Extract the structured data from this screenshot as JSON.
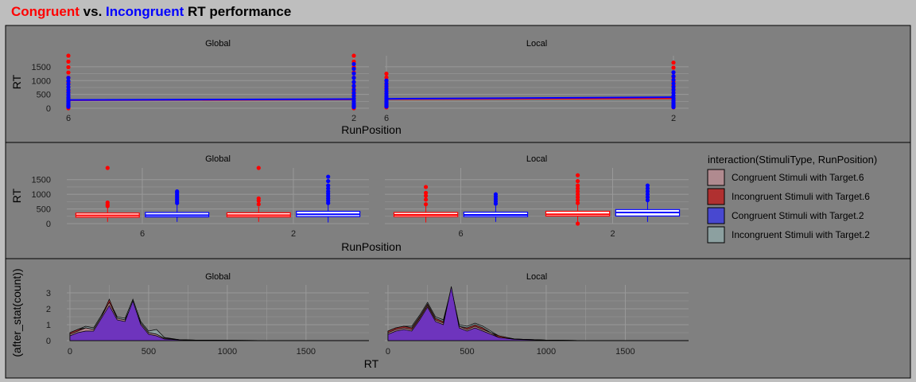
{
  "title": {
    "congruent": "Congruent",
    "vs": " vs. ",
    "incongruent": "Incongruent",
    "rest": " RT performance"
  },
  "colors": {
    "background": "#bebebe",
    "panel": "#808080",
    "congruent": "#ff0000",
    "incongruent": "#0000ff",
    "grid": "#999999"
  },
  "facets": [
    "Global",
    "Local"
  ],
  "legend": {
    "title": "interaction(StimuliType, RunPosition)",
    "items": [
      {
        "label": "Congruent Stimuli with Target.6",
        "color": "#b08a8f"
      },
      {
        "label": "Incongruent Stimuli with Target.6",
        "color": "#b03030"
      },
      {
        "label": "Congruent Stimuli with Target.2",
        "color": "#4848d0"
      },
      {
        "label": "Incongruent Stimuli with Target.2",
        "color": "#8ca0a0"
      }
    ]
  },
  "chart_data": [
    {
      "type": "line",
      "xlabel": "RunPosition",
      "ylabel": "RT",
      "categories": [
        "6",
        "2"
      ],
      "ylim": [
        0,
        1900
      ],
      "yticks": [
        0,
        500,
        1000,
        1500
      ],
      "facets": [
        {
          "name": "Global",
          "series": [
            {
              "color": "#ff0000",
              "line": [
                290,
                320
              ],
              "max": [
                1900,
                1900
              ],
              "min": [
                0,
                0
              ]
            },
            {
              "color": "#0000ff",
              "line": [
                300,
                330
              ],
              "max": [
                1100,
                1600
              ],
              "min": [
                50,
                40
              ]
            }
          ]
        },
        {
          "name": "Local",
          "series": [
            {
              "color": "#ff0000",
              "line": [
                330,
                360
              ],
              "max": [
                1250,
                1650
              ],
              "min": [
                30,
                30
              ]
            },
            {
              "color": "#0000ff",
              "line": [
                340,
                400
              ],
              "max": [
                1000,
                1300
              ],
              "min": [
                60,
                40
              ]
            }
          ]
        }
      ]
    },
    {
      "type": "box",
      "xlabel": "RunPosition",
      "ylabel": "RT",
      "categories": [
        "6",
        "2"
      ],
      "ylim": [
        0,
        1900
      ],
      "yticks": [
        0,
        500,
        1000,
        1500
      ],
      "facets": [
        {
          "name": "Global",
          "boxes": [
            {
              "position": "6",
              "group": "Congruent",
              "color": "#ff0000",
              "whisker_low": 60,
              "q1": 220,
              "median": 280,
              "q3": 360,
              "whisker_high": 540,
              "outliers": [
                600,
                650,
                720,
                1900
              ]
            },
            {
              "position": "6",
              "group": "Incongruent",
              "color": "#0000ff",
              "whisker_low": 60,
              "q1": 230,
              "median": 290,
              "q3": 380,
              "whisker_high": 650,
              "outliers": [
                700,
                760,
                820,
                880,
                940,
                1000,
                1060,
                1100
              ]
            },
            {
              "position": "2",
              "group": "Congruent",
              "color": "#ff0000",
              "whisker_low": 60,
              "q1": 230,
              "median": 290,
              "q3": 370,
              "whisker_high": 580,
              "outliers": [
                660,
                780,
                860,
                1900
              ]
            },
            {
              "position": "2",
              "group": "Incongruent",
              "color": "#0000ff",
              "whisker_low": 40,
              "q1": 240,
              "median": 320,
              "q3": 420,
              "whisker_high": 640,
              "outliers": [
                700,
                780,
                860,
                940,
                1020,
                1100,
                1200,
                1300,
                1450,
                1600
              ]
            }
          ]
        },
        {
          "name": "Local",
          "boxes": [
            {
              "position": "6",
              "group": "Congruent",
              "color": "#ff0000",
              "whisker_low": 40,
              "q1": 240,
              "median": 300,
              "q3": 380,
              "whisker_high": 600,
              "outliers": [
                660,
                820,
                950,
                1050,
                1250
              ]
            },
            {
              "position": "6",
              "group": "Incongruent",
              "color": "#0000ff",
              "whisker_low": 60,
              "q1": 240,
              "median": 300,
              "q3": 390,
              "whisker_high": 620,
              "outliers": [
                680,
                760,
                840,
                920,
                1000
              ]
            },
            {
              "position": "2",
              "group": "Congruent",
              "color": "#ff0000",
              "whisker_low": 60,
              "q1": 260,
              "median": 320,
              "q3": 420,
              "whisker_high": 650,
              "outliers": [
                0,
                700,
                800,
                900,
                1000,
                1100,
                1200,
                1300,
                1450,
                1650
              ]
            },
            {
              "position": "2",
              "group": "Incongruent",
              "color": "#0000ff",
              "whisker_low": 60,
              "q1": 260,
              "median": 380,
              "q3": 480,
              "whisker_high": 740,
              "outliers": [
                800,
                900,
                1000,
                1100,
                1200,
                1300
              ]
            }
          ]
        }
      ]
    },
    {
      "type": "area",
      "xlabel": "RT",
      "ylabel": "(after_stat(count))",
      "xlim": [
        -20,
        1900
      ],
      "xticks": [
        0,
        500,
        1000,
        1500
      ],
      "ylim": [
        0,
        3.5
      ],
      "yticks": [
        0,
        1,
        2,
        3
      ],
      "facets": [
        {
          "name": "Global",
          "series": [
            {
              "color": "#8ca0a0",
              "x": [
                0,
                50,
                100,
                150,
                200,
                250,
                300,
                350,
                400,
                450,
                500,
                550,
                600,
                700,
                800,
                1000,
                1200,
                1500,
                1900
              ],
              "values": [
                0.5,
                0.7,
                0.9,
                0.8,
                1.6,
                2.5,
                1.5,
                1.4,
                2.6,
                1.2,
                0.6,
                0.7,
                0.2,
                0.05,
                0.03,
                0.02,
                0.01,
                0.01,
                0
              ]
            },
            {
              "color": "#b03030",
              "x": [
                0,
                50,
                100,
                150,
                200,
                250,
                300,
                350,
                400,
                450,
                500,
                550,
                600,
                700,
                800,
                1000,
                1200,
                1500,
                1900
              ],
              "values": [
                0.5,
                0.7,
                0.8,
                0.7,
                1.5,
                2.6,
                1.4,
                1.3,
                2.4,
                1.1,
                0.5,
                0.4,
                0.15,
                0.05,
                0.03,
                0.02,
                0.01,
                0.01,
                0
              ]
            },
            {
              "color": "#b08a8f",
              "x": [
                0,
                50,
                100,
                150,
                200,
                250,
                300,
                350,
                400,
                450,
                500,
                550,
                600,
                700,
                800,
                1000,
                1200,
                1500,
                1900
              ],
              "values": [
                0.4,
                0.6,
                0.8,
                0.7,
                1.5,
                2.4,
                1.4,
                1.3,
                2.3,
                1.1,
                0.5,
                0.4,
                0.15,
                0.05,
                0.03,
                0.02,
                0.01,
                0.01,
                0
              ]
            },
            {
              "color": "#6a2fc0",
              "x": [
                0,
                50,
                100,
                150,
                200,
                250,
                300,
                350,
                400,
                450,
                500,
                550,
                600,
                700,
                800,
                1000,
                1200,
                1500,
                1900
              ],
              "values": [
                0.3,
                0.5,
                0.6,
                0.6,
                1.4,
                2.2,
                1.3,
                1.2,
                2.5,
                1.0,
                0.4,
                0.3,
                0.1,
                0.04,
                0.02,
                0.01,
                0.01,
                0.01,
                0
              ]
            }
          ]
        },
        {
          "name": "Local",
          "series": [
            {
              "color": "#8ca0a0",
              "x": [
                0,
                50,
                100,
                150,
                200,
                250,
                300,
                350,
                400,
                450,
                500,
                550,
                600,
                650,
                700,
                800,
                1000,
                1200,
                1500,
                1900
              ],
              "values": [
                0.6,
                0.8,
                0.9,
                0.9,
                1.6,
                2.4,
                1.5,
                1.3,
                3.3,
                1.0,
                0.9,
                1.1,
                0.9,
                0.6,
                0.3,
                0.1,
                0.03,
                0.01,
                0.01,
                0
              ]
            },
            {
              "color": "#b03030",
              "x": [
                0,
                50,
                100,
                150,
                200,
                250,
                300,
                350,
                400,
                450,
                500,
                550,
                600,
                650,
                700,
                800,
                1000,
                1200,
                1500,
                1900
              ],
              "values": [
                0.6,
                0.8,
                0.9,
                0.8,
                1.5,
                2.3,
                1.4,
                1.2,
                3.2,
                0.9,
                0.8,
                1.0,
                0.8,
                0.5,
                0.3,
                0.1,
                0.03,
                0.01,
                0.01,
                0
              ]
            },
            {
              "color": "#b08a8f",
              "x": [
                0,
                50,
                100,
                150,
                200,
                250,
                300,
                350,
                400,
                450,
                500,
                550,
                600,
                650,
                700,
                800,
                1000,
                1200,
                1500,
                1900
              ],
              "values": [
                0.5,
                0.7,
                0.8,
                0.7,
                1.4,
                2.2,
                1.3,
                1.1,
                3.1,
                0.9,
                0.7,
                0.9,
                0.7,
                0.5,
                0.2,
                0.1,
                0.03,
                0.01,
                0.01,
                0
              ]
            },
            {
              "color": "#6a2fc0",
              "x": [
                0,
                50,
                100,
                150,
                200,
                250,
                300,
                350,
                400,
                450,
                500,
                550,
                600,
                650,
                700,
                800,
                1000,
                1200,
                1500,
                1900
              ],
              "values": [
                0.4,
                0.6,
                0.7,
                0.6,
                1.3,
                2.1,
                1.2,
                1.0,
                3.4,
                0.8,
                0.6,
                0.8,
                0.6,
                0.4,
                0.2,
                0.08,
                0.02,
                0.01,
                0.01,
                0
              ]
            }
          ]
        }
      ]
    }
  ]
}
